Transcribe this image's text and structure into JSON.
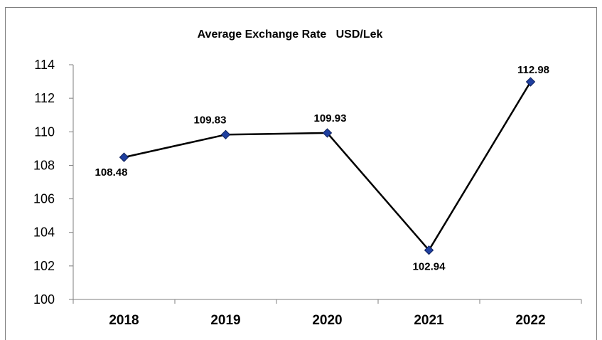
{
  "chart_data": {
    "type": "line",
    "title": "Average Exchange Rate   USD/Lek",
    "xlabel": "",
    "ylabel": "",
    "categories": [
      "2018",
      "2019",
      "2020",
      "2021",
      "2022"
    ],
    "series": [
      {
        "values": [
          108.48,
          109.83,
          109.93,
          102.94,
          112.98
        ],
        "labels": [
          "108.48",
          "109.83",
          "109.93",
          "102.94",
          "112.98"
        ]
      }
    ],
    "ylim": [
      100,
      114
    ],
    "yticks": [
      "100",
      "102",
      "104",
      "106",
      "108",
      "110",
      "112",
      "114"
    ],
    "grid": false,
    "legend": "none",
    "line_color": "#000000",
    "marker_color": "#1f3f9f"
  }
}
